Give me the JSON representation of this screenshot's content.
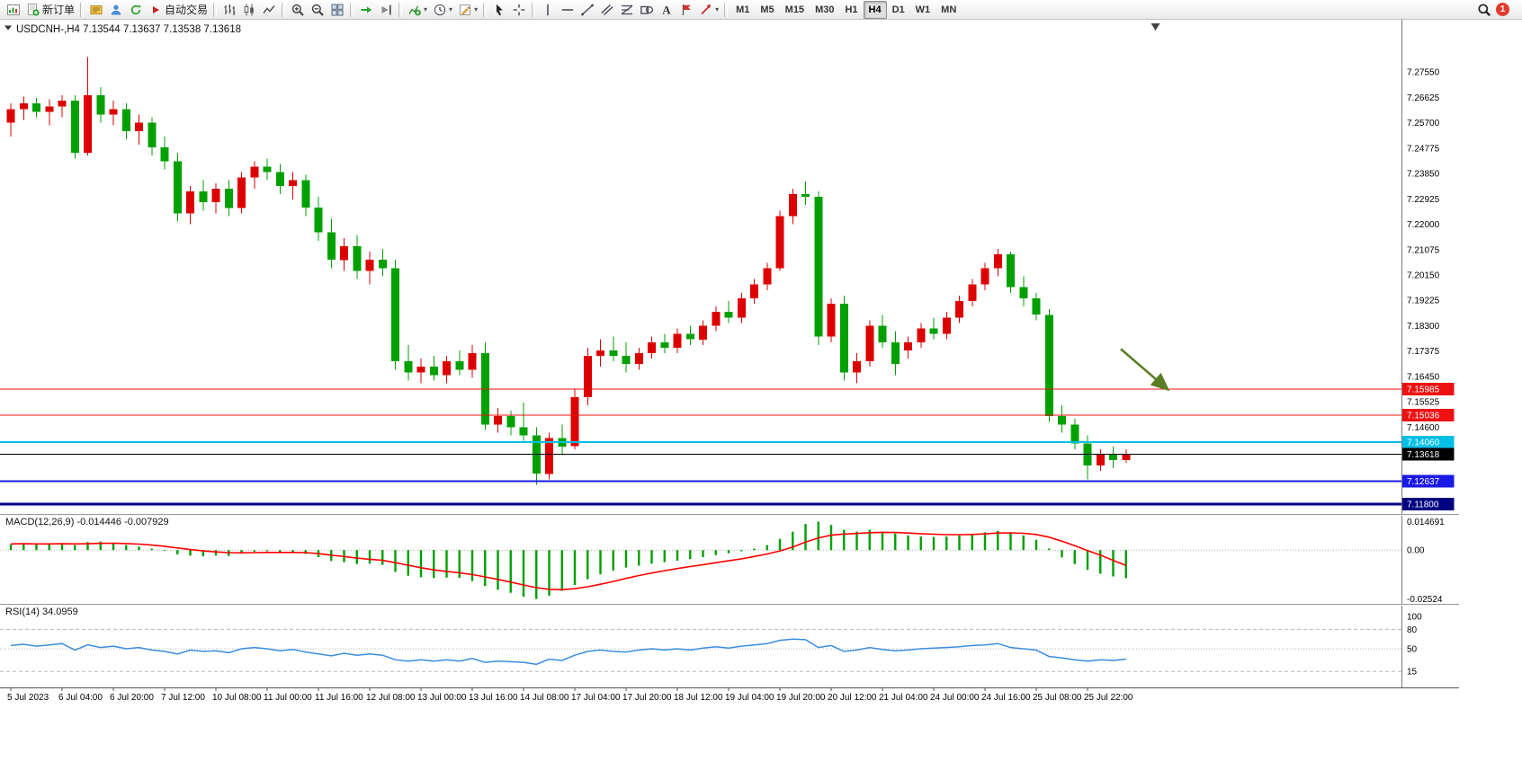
{
  "toolbar": {
    "items": [
      {
        "name": "new-chart",
        "icon": "new-chart"
      },
      {
        "name": "new-order",
        "icon": "new-order",
        "label": "新订单"
      },
      {
        "sep": true
      },
      {
        "name": "metaeditor",
        "icon": "metaeditor"
      },
      {
        "name": "community",
        "icon": "community"
      },
      {
        "name": "refresh",
        "icon": "refresh"
      },
      {
        "name": "autotrading",
        "icon": "autotrading",
        "label": "自动交易"
      },
      {
        "sep": true
      },
      {
        "name": "bar-chart",
        "icon": "bar-chart"
      },
      {
        "name": "candlestick-chart",
        "icon": "candlestick"
      },
      {
        "name": "line-chart",
        "icon": "line-chart"
      },
      {
        "sep": true
      },
      {
        "name": "zoom-in",
        "icon": "zoom-in"
      },
      {
        "name": "zoom-out",
        "icon": "zoom-out"
      },
      {
        "name": "tile-windows",
        "icon": "tile-windows"
      },
      {
        "sep": true
      },
      {
        "name": "auto-scroll",
        "icon": "auto-scroll"
      },
      {
        "name": "chart-shift",
        "icon": "chart-shift"
      },
      {
        "sep": true
      },
      {
        "name": "indicators",
        "icon": "indicators",
        "dropdown": true
      },
      {
        "name": "periods",
        "icon": "periods",
        "dropdown": true
      },
      {
        "name": "templates",
        "icon": "templates",
        "dropdown": true
      },
      {
        "sep": true
      },
      {
        "name": "cursor",
        "icon": "cursor"
      },
      {
        "name": "crosshair",
        "icon": "crosshair"
      },
      {
        "sep": true
      },
      {
        "name": "vertical-line",
        "icon": "vertical-line"
      },
      {
        "name": "horizontal-line",
        "icon": "horizontal-line"
      },
      {
        "name": "trendline",
        "icon": "trendline"
      },
      {
        "name": "channel",
        "icon": "channel"
      },
      {
        "name": "fibonacci",
        "icon": "fibonacci"
      },
      {
        "name": "shapes",
        "icon": "shapes"
      },
      {
        "name": "text",
        "icon": "text"
      },
      {
        "name": "text-label",
        "icon": "label"
      },
      {
        "name": "arrows",
        "icon": "arrows",
        "dropdown": true
      }
    ],
    "timeframes": [
      "M1",
      "M5",
      "M15",
      "M30",
      "H1",
      "H4",
      "D1",
      "W1",
      "MN"
    ],
    "active_timeframe": "H4",
    "notification_count": "1"
  },
  "chart_header": {
    "symbol": "USDCNH-",
    "timeframe": "H4",
    "open": "7.13544",
    "high": "7.13637",
    "low": "7.13538",
    "close": "7.13618",
    "display": "USDCNH-,H4  7.13544 7.13637 7.13538 7.13618"
  },
  "chart_data": [
    {
      "type": "candlestick",
      "symbol": "USDCNH-",
      "timeframe": "H4",
      "colors": {
        "up": "#dd0000",
        "down": "#00a000"
      },
      "y_axis": {
        "range": [
          7.115,
          7.288
        ],
        "ticks": [
          "7.27550",
          "7.26625",
          "7.25700",
          "7.24775",
          "7.23850",
          "7.22925",
          "7.22000",
          "7.21075",
          "7.20150",
          "7.19225",
          "7.18300",
          "7.17375",
          "7.16450",
          "7.15525",
          "7.14600"
        ]
      },
      "x_axis": {
        "candles_per_label": 4,
        "labels": [
          "5 Jul 2023",
          "6 Jul 04:00",
          "6 Jul 20:00",
          "7 Jul 12:00",
          "10 Jul 08:00",
          "11 Jul 00:00",
          "11 Jul 16:00",
          "12 Jul 08:00",
          "13 Jul 00:00",
          "13 Jul 16:00",
          "14 Jul 08:00",
          "17 Jul 04:00",
          "17 Jul 20:00",
          "18 Jul 12:00",
          "19 Jul 04:00",
          "19 Jul 20:00",
          "20 Jul 12:00",
          "21 Jul 04:00",
          "24 Jul 00:00",
          "24 Jul 16:00",
          "25 Jul 08:00",
          "25 Jul 22:00"
        ]
      },
      "levels": [
        {
          "name": "resistance-line-1",
          "price": 7.15985,
          "label": "7.15985",
          "color": "#ee1111",
          "width": 1
        },
        {
          "name": "resistance-line-2",
          "price": 7.15036,
          "label": "7.15036",
          "color": "#ee1111",
          "width": 1
        },
        {
          "name": "support-line-cyan",
          "price": 7.1406,
          "label": "7.14060",
          "color": "#00c0e8",
          "width": 2
        },
        {
          "name": "bid-price-line",
          "price": 7.13618,
          "label": "7.13618",
          "color": "#000000",
          "width": 1
        },
        {
          "name": "support-line-blue",
          "price": 7.12637,
          "label": "7.12637",
          "color": "#1a1ae6",
          "width": 2
        },
        {
          "name": "support-line-navy",
          "price": 7.118,
          "label": "7.11800",
          "color": "#000080",
          "width": 3
        }
      ],
      "annotations": [
        {
          "type": "arrow",
          "color": "#5a7d23",
          "from": {
            "index": 86.6,
            "price": 7.1745
          },
          "to": {
            "index": 90.2,
            "price": 7.16
          }
        }
      ],
      "shift_marker_index": 89.3,
      "ohlc": [
        [
          7.257,
          7.264,
          7.252,
          7.262
        ],
        [
          7.262,
          7.2665,
          7.258,
          7.264
        ],
        [
          7.264,
          7.266,
          7.259,
          7.261
        ],
        [
          7.261,
          7.2655,
          7.256,
          7.263
        ],
        [
          7.263,
          7.267,
          7.259,
          7.265
        ],
        [
          7.265,
          7.267,
          7.244,
          7.246
        ],
        [
          7.246,
          7.281,
          7.245,
          7.267
        ],
        [
          7.267,
          7.27,
          7.257,
          7.26
        ],
        [
          7.26,
          7.265,
          7.256,
          7.262
        ],
        [
          7.262,
          7.264,
          7.251,
          7.254
        ],
        [
          7.254,
          7.26,
          7.249,
          7.257
        ],
        [
          7.257,
          7.259,
          7.245,
          7.248
        ],
        [
          7.248,
          7.252,
          7.24,
          7.243
        ],
        [
          7.243,
          7.246,
          7.221,
          7.224
        ],
        [
          7.224,
          7.234,
          7.22,
          7.232
        ],
        [
          7.232,
          7.236,
          7.225,
          7.228
        ],
        [
          7.228,
          7.235,
          7.224,
          7.233
        ],
        [
          7.233,
          7.236,
          7.223,
          7.226
        ],
        [
          7.226,
          7.239,
          7.224,
          7.237
        ],
        [
          7.237,
          7.243,
          7.233,
          7.241
        ],
        [
          7.241,
          7.244,
          7.236,
          7.239
        ],
        [
          7.239,
          7.242,
          7.231,
          7.234
        ],
        [
          7.234,
          7.239,
          7.229,
          7.236
        ],
        [
          7.236,
          7.238,
          7.223,
          7.226
        ],
        [
          7.226,
          7.23,
          7.214,
          7.217
        ],
        [
          7.217,
          7.222,
          7.204,
          7.207
        ],
        [
          7.207,
          7.215,
          7.203,
          7.212
        ],
        [
          7.212,
          7.216,
          7.2,
          7.203
        ],
        [
          7.203,
          7.21,
          7.198,
          7.207
        ],
        [
          7.207,
          7.211,
          7.201,
          7.204
        ],
        [
          7.204,
          7.207,
          7.167,
          7.17
        ],
        [
          7.17,
          7.176,
          7.163,
          7.166
        ],
        [
          7.166,
          7.171,
          7.162,
          7.168
        ],
        [
          7.168,
          7.172,
          7.163,
          7.165
        ],
        [
          7.165,
          7.172,
          7.162,
          7.17
        ],
        [
          7.17,
          7.174,
          7.165,
          7.167
        ],
        [
          7.167,
          7.176,
          7.164,
          7.173
        ],
        [
          7.173,
          7.177,
          7.145,
          7.147
        ],
        [
          7.147,
          7.153,
          7.144,
          7.15
        ],
        [
          7.15,
          7.152,
          7.143,
          7.146
        ],
        [
          7.146,
          7.155,
          7.141,
          7.143
        ],
        [
          7.143,
          7.146,
          7.125,
          7.129
        ],
        [
          7.129,
          7.144,
          7.127,
          7.142
        ],
        [
          7.142,
          7.147,
          7.136,
          7.139
        ],
        [
          7.139,
          7.16,
          7.138,
          7.157
        ],
        [
          7.157,
          7.175,
          7.154,
          7.172
        ],
        [
          7.172,
          7.178,
          7.168,
          7.174
        ],
        [
          7.174,
          7.179,
          7.17,
          7.172
        ],
        [
          7.172,
          7.177,
          7.166,
          7.169
        ],
        [
          7.169,
          7.175,
          7.167,
          7.173
        ],
        [
          7.173,
          7.179,
          7.171,
          7.177
        ],
        [
          7.177,
          7.18,
          7.173,
          7.175
        ],
        [
          7.175,
          7.182,
          7.173,
          7.18
        ],
        [
          7.18,
          7.183,
          7.176,
          7.178
        ],
        [
          7.178,
          7.185,
          7.176,
          7.183
        ],
        [
          7.183,
          7.19,
          7.181,
          7.188
        ],
        [
          7.188,
          7.192,
          7.184,
          7.186
        ],
        [
          7.186,
          7.195,
          7.184,
          7.193
        ],
        [
          7.193,
          7.2,
          7.191,
          7.198
        ],
        [
          7.198,
          7.206,
          7.196,
          7.204
        ],
        [
          7.204,
          7.225,
          7.203,
          7.223
        ],
        [
          7.223,
          7.233,
          7.22,
          7.231
        ],
        [
          7.231,
          7.2355,
          7.227,
          7.23
        ],
        [
          7.23,
          7.232,
          7.176,
          7.179
        ],
        [
          7.179,
          7.193,
          7.177,
          7.191
        ],
        [
          7.191,
          7.194,
          7.163,
          7.166
        ],
        [
          7.166,
          7.173,
          7.162,
          7.17
        ],
        [
          7.17,
          7.185,
          7.168,
          7.183
        ],
        [
          7.183,
          7.187,
          7.175,
          7.177
        ],
        [
          7.177,
          7.181,
          7.165,
          7.169
        ],
        [
          7.174,
          7.179,
          7.171,
          7.177
        ],
        [
          7.177,
          7.184,
          7.175,
          7.182
        ],
        [
          7.182,
          7.186,
          7.178,
          7.18
        ],
        [
          7.18,
          7.188,
          7.178,
          7.186
        ],
        [
          7.186,
          7.194,
          7.184,
          7.192
        ],
        [
          7.192,
          7.2,
          7.19,
          7.198
        ],
        [
          7.198,
          7.206,
          7.196,
          7.204
        ],
        [
          7.204,
          7.211,
          7.201,
          7.209
        ],
        [
          7.209,
          7.21,
          7.195,
          7.197
        ],
        [
          7.197,
          7.201,
          7.19,
          7.193
        ],
        [
          7.193,
          7.195,
          7.185,
          7.187
        ],
        [
          7.187,
          7.189,
          7.148,
          7.15
        ],
        [
          7.15,
          7.154,
          7.144,
          7.147
        ],
        [
          7.147,
          7.149,
          7.138,
          7.14
        ],
        [
          7.14,
          7.143,
          7.127,
          7.132
        ],
        [
          7.132,
          7.138,
          7.13,
          7.136
        ],
        [
          7.136,
          7.139,
          7.131,
          7.134
        ],
        [
          7.134,
          7.138,
          7.133,
          7.13618
        ]
      ]
    },
    {
      "type": "macd",
      "title": "MACD(12,26,9)",
      "macd_value": "-0.014446",
      "signal_value": "-0.007929",
      "display": "MACD(12,26,9) -0.014446 -0.007929",
      "range": [
        -0.0268,
        0.0168
      ],
      "colors": {
        "histogram": "#00a000",
        "signal": "#ff0000"
      },
      "y_ticks": [
        {
          "label": "0.014691",
          "value": 0.014691
        },
        {
          "label": "0.00",
          "value": 0
        },
        {
          "label": "-0.02524",
          "value": -0.02524
        }
      ],
      "histogram": [
        0.003,
        0.0034,
        0.003,
        0.0032,
        0.0035,
        0.0026,
        0.0042,
        0.0044,
        0.0036,
        0.0026,
        0.0018,
        0.0008,
        -0.0004,
        -0.0022,
        -0.0028,
        -0.0032,
        -0.0028,
        -0.003,
        -0.0018,
        -0.0008,
        -0.0006,
        -0.0012,
        -0.001,
        -0.002,
        -0.0036,
        -0.0056,
        -0.0062,
        -0.0072,
        -0.007,
        -0.0076,
        -0.0112,
        -0.0132,
        -0.014,
        -0.0144,
        -0.0142,
        -0.0143,
        -0.016,
        -0.0185,
        -0.0205,
        -0.022,
        -0.024,
        -0.0252,
        -0.0235,
        -0.021,
        -0.018,
        -0.015,
        -0.0125,
        -0.0105,
        -0.009,
        -0.008,
        -0.007,
        -0.0062,
        -0.0054,
        -0.0046,
        -0.0036,
        -0.0026,
        -0.0016,
        -0.0006,
        0.0008,
        0.0026,
        0.0058,
        0.0095,
        0.0135,
        0.0147,
        0.013,
        0.0105,
        0.0095,
        0.0105,
        0.0096,
        0.0086,
        0.0076,
        0.007,
        0.0068,
        0.007,
        0.0076,
        0.0084,
        0.0092,
        0.01,
        0.0092,
        0.0076,
        0.0054,
        0.0008,
        -0.0038,
        -0.0072,
        -0.0102,
        -0.0122,
        -0.0136,
        -0.014446
      ],
      "signal": [
        0.0032,
        0.0033,
        0.0032,
        0.0032,
        0.0033,
        0.0032,
        0.0033,
        0.0035,
        0.0036,
        0.0034,
        0.0031,
        0.0026,
        0.002,
        0.0011,
        0.0003,
        -0.0004,
        -0.0009,
        -0.0013,
        -0.0014,
        -0.0013,
        -0.0012,
        -0.0012,
        -0.0012,
        -0.0013,
        -0.0018,
        -0.0026,
        -0.0033,
        -0.0041,
        -0.0047,
        -0.0053,
        -0.0065,
        -0.0078,
        -0.0091,
        -0.0102,
        -0.011,
        -0.0117,
        -0.0126,
        -0.0138,
        -0.0151,
        -0.0165,
        -0.018,
        -0.0194,
        -0.0202,
        -0.0204,
        -0.0199,
        -0.0189,
        -0.0176,
        -0.0162,
        -0.0146,
        -0.0131,
        -0.0118,
        -0.0106,
        -0.0095,
        -0.0085,
        -0.0075,
        -0.0065,
        -0.0055,
        -0.0045,
        -0.0033,
        -0.002,
        -0.0004,
        0.0016,
        0.0042,
        0.0063,
        0.0077,
        0.0083,
        0.0086,
        0.009,
        0.0092,
        0.0091,
        0.0088,
        0.0085,
        0.0082,
        0.008,
        0.008,
        0.0081,
        0.0084,
        0.0088,
        0.0089,
        0.0087,
        0.0081,
        0.0067,
        0.0046,
        0.0023,
        -0.0002,
        -0.0026,
        -0.0053,
        -0.007929
      ]
    },
    {
      "type": "rsi",
      "title": "RSI(14)",
      "value": "34.0959",
      "display": "RSI(14) 34.0959",
      "range": [
        0,
        100
      ],
      "color": "#3c8ddc",
      "levels": [
        {
          "value": 80,
          "style": "dashed"
        },
        {
          "value": 50,
          "style": "dotted"
        },
        {
          "value": 15,
          "style": "dashed"
        }
      ],
      "y_ticks": [
        {
          "label": "100",
          "value": 100
        },
        {
          "label": "80",
          "value": 80
        },
        {
          "label": "50",
          "value": 50
        },
        {
          "label": "15",
          "value": 15
        }
      ],
      "series": [
        55,
        57,
        54,
        56,
        58,
        48,
        56,
        52,
        54,
        50,
        52,
        48,
        46,
        42,
        48,
        46,
        47,
        44,
        50,
        52,
        50,
        47,
        49,
        45,
        42,
        39,
        43,
        40,
        42,
        40,
        33,
        31,
        33,
        31,
        33,
        31,
        35,
        29,
        31,
        30,
        29,
        26,
        34,
        32,
        40,
        46,
        48,
        46,
        45,
        48,
        50,
        48,
        50,
        48,
        51,
        53,
        51,
        54,
        56,
        58,
        63,
        65,
        64,
        52,
        55,
        46,
        48,
        52,
        49,
        47,
        48,
        50,
        51,
        52,
        53,
        55,
        56,
        58,
        52,
        50,
        48,
        38,
        36,
        33,
        31,
        33,
        32,
        34.0959
      ]
    }
  ]
}
